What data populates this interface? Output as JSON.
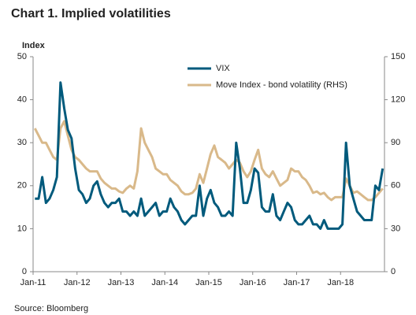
{
  "chart_data": {
    "type": "line",
    "title": "Chart 1. Implied volatilities",
    "y_label": "Index",
    "source": "Source: Bloomberg",
    "categories": [
      "Jan-11",
      null,
      null,
      null,
      null,
      null,
      null,
      null,
      null,
      null,
      null,
      null,
      "Jan-12",
      null,
      null,
      null,
      null,
      null,
      null,
      null,
      null,
      null,
      null,
      null,
      "Jan-13",
      null,
      null,
      null,
      null,
      null,
      null,
      null,
      null,
      null,
      null,
      null,
      "Jan-14",
      null,
      null,
      null,
      null,
      null,
      null,
      null,
      null,
      null,
      null,
      null,
      "Jan-15",
      null,
      null,
      null,
      null,
      null,
      null,
      null,
      null,
      null,
      null,
      null,
      "Jan-16",
      null,
      null,
      null,
      null,
      null,
      null,
      null,
      null,
      null,
      null,
      null,
      "Jan-17",
      null,
      null,
      null,
      null,
      null,
      null,
      null,
      null,
      null,
      null,
      null,
      "Jan-18",
      null,
      null,
      null,
      null,
      null,
      null,
      null,
      null,
      null,
      null,
      null
    ],
    "series": [
      {
        "name": "VIX",
        "color": "#005a7c",
        "values": [
          17,
          17,
          22,
          16,
          17,
          19,
          22,
          44,
          38,
          33,
          31,
          24,
          19,
          18,
          16,
          17,
          20,
          21,
          18,
          16,
          15,
          16,
          16,
          17,
          14,
          14,
          13,
          14,
          13,
          17,
          13,
          14,
          15,
          16,
          13,
          14,
          14,
          17,
          15,
          14,
          12,
          11,
          12,
          13,
          13,
          20,
          13,
          17,
          19,
          16,
          15,
          13,
          13,
          14,
          13,
          30,
          24,
          16,
          16,
          19,
          24,
          23,
          15,
          14,
          14,
          18,
          13,
          12,
          14,
          16,
          15,
          12,
          11,
          11,
          12,
          13,
          11,
          11,
          10,
          12,
          10,
          10,
          10,
          10,
          11,
          30,
          20,
          17,
          14,
          13,
          12,
          12,
          12,
          20,
          19,
          24
        ]
      },
      {
        "name": "Move Index - bond volatility (RHS)",
        "color": "#d9b98a",
        "axis": "y2",
        "values": [
          100,
          95,
          90,
          90,
          85,
          80,
          78,
          100,
          105,
          95,
          85,
          80,
          78,
          75,
          72,
          70,
          70,
          70,
          65,
          62,
          60,
          58,
          58,
          56,
          55,
          58,
          60,
          58,
          70,
          100,
          90,
          85,
          80,
          72,
          70,
          68,
          68,
          64,
          62,
          60,
          56,
          54,
          54,
          55,
          58,
          68,
          62,
          72,
          82,
          88,
          80,
          78,
          76,
          72,
          75,
          78,
          76,
          70,
          66,
          70,
          78,
          85,
          72,
          68,
          66,
          70,
          65,
          60,
          62,
          64,
          72,
          70,
          70,
          66,
          64,
          60,
          55,
          56,
          54,
          55,
          52,
          50,
          52,
          52,
          52,
          65,
          60,
          55,
          56,
          54,
          52,
          50,
          50,
          52,
          55,
          58
        ]
      }
    ],
    "ylim": [
      0,
      50
    ],
    "yticks": [
      0,
      10,
      20,
      30,
      40,
      50
    ],
    "y2lim": [
      0,
      150
    ],
    "y2ticks": [
      0,
      30,
      60,
      90,
      120,
      150
    ],
    "grid": false
  }
}
